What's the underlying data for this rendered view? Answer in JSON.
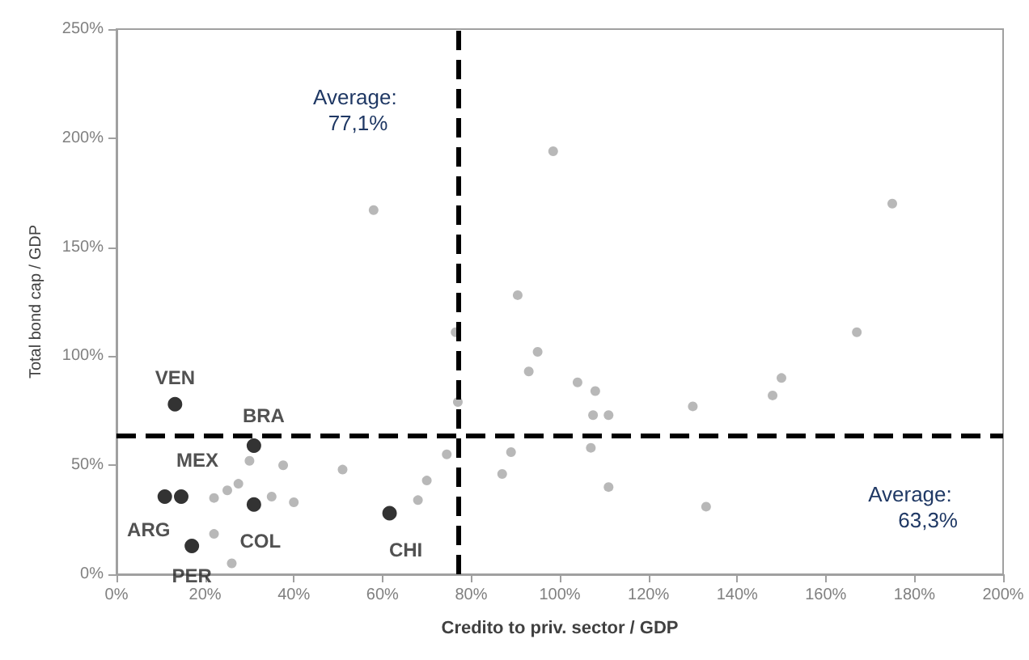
{
  "chart_data": {
    "type": "scatter",
    "xlabel": "Credito to priv. sector / GDP",
    "ylabel": "Total bond cap / GDP",
    "series": [
      {
        "color": "#a6a6a6",
        "x": [
          58,
          98.5,
          175,
          90.5,
          95,
          93,
          104,
          108,
          107.5,
          111,
          130,
          148,
          150,
          167,
          89,
          87,
          107,
          111,
          133,
          76.5,
          77,
          74.5,
          70,
          68,
          51,
          37.6,
          30,
          22,
          25,
          27.5,
          35,
          40,
          22,
          26
        ],
        "values": [
          167,
          194,
          170,
          128,
          102,
          93,
          88,
          84,
          73,
          73,
          77,
          82,
          90,
          111,
          56,
          46,
          58,
          40,
          31,
          111,
          79,
          55,
          43,
          34,
          48,
          50,
          52,
          35,
          38.5,
          41.5,
          35.6,
          33,
          18.5,
          5
        ]
      },
      {
        "color": "#000000",
        "x": [
          13.2,
          31,
          14.6,
          10.9,
          31,
          17,
          61.6
        ],
        "values": [
          78,
          59,
          35.6,
          35.6,
          32,
          13,
          28
        ],
        "value_labels": [
          "VEN",
          "BRA",
          "MEX",
          "ARG",
          "COL",
          "PER",
          "CHI"
        ]
      }
    ],
    "xlim": [
      0,
      200
    ],
    "xticks": [
      {
        "value": 0,
        "label": "0%"
      },
      {
        "value": 20,
        "label": "20%"
      },
      {
        "value": 40,
        "label": "40%"
      },
      {
        "value": 60,
        "label": "60%"
      },
      {
        "value": 80,
        "label": "80%"
      },
      {
        "value": 100,
        "label": "100%"
      },
      {
        "value": 120,
        "label": "120%"
      },
      {
        "value": 140,
        "label": "140%"
      },
      {
        "value": 160,
        "label": "160%"
      },
      {
        "value": 180,
        "label": "180%"
      },
      {
        "value": 200,
        "label": "200%"
      }
    ],
    "ylim": [
      0,
      250
    ],
    "yticks": [
      {
        "value": 0,
        "label": "0%"
      },
      {
        "value": 50,
        "label": "50%"
      },
      {
        "value": 100,
        "label": "100%"
      },
      {
        "value": 150,
        "label": "150%"
      },
      {
        "value": 200,
        "label": "200%"
      },
      {
        "value": 250,
        "label": "250%"
      }
    ],
    "ref_lines": [
      {
        "axis": "x",
        "value": 77.1,
        "label": "Average: 77,1%",
        "color": "#000000",
        "line_style": "dashed"
      },
      {
        "axis": "y",
        "value": 63.3,
        "label": "Average: 63,3%",
        "color": "#000000",
        "line_style": "dashed"
      }
    ],
    "grid": false,
    "marker": "circle"
  }
}
